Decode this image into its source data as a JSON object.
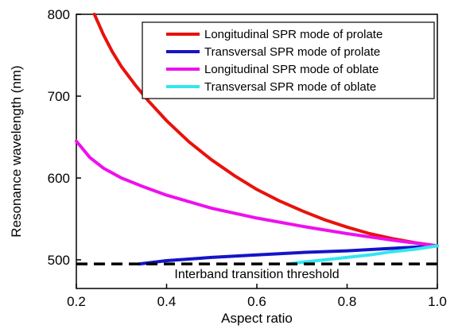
{
  "chart_data": {
    "type": "line",
    "xlabel": "Aspect ratio",
    "ylabel": "Resonance wavelength (nm)",
    "xlim": [
      0.2,
      1.0
    ],
    "ylim": [
      465,
      800
    ],
    "x_ticks": [
      "0.2",
      "0.4",
      "0.6",
      "0.8",
      "1.0"
    ],
    "y_ticks": [
      "500",
      "600",
      "700",
      "800"
    ],
    "grid": false,
    "legend_position": "top-right",
    "series": [
      {
        "name": "Longitudinal SPR mode of prolate",
        "color": "#e8120c",
        "points": [
          [
            0.24,
            800
          ],
          [
            0.26,
            775
          ],
          [
            0.28,
            754
          ],
          [
            0.3,
            736
          ],
          [
            0.33,
            714
          ],
          [
            0.36,
            694
          ],
          [
            0.4,
            670
          ],
          [
            0.45,
            644
          ],
          [
            0.5,
            622
          ],
          [
            0.55,
            603
          ],
          [
            0.6,
            586
          ],
          [
            0.65,
            572
          ],
          [
            0.7,
            560
          ],
          [
            0.75,
            549
          ],
          [
            0.8,
            540
          ],
          [
            0.85,
            532
          ],
          [
            0.9,
            526
          ],
          [
            0.95,
            521
          ],
          [
            1.0,
            517
          ]
        ]
      },
      {
        "name": "Transversal SPR mode of prolate",
        "color": "#1414c8",
        "points": [
          [
            0.34,
            495
          ],
          [
            0.4,
            499
          ],
          [
            0.5,
            503
          ],
          [
            0.6,
            506
          ],
          [
            0.7,
            509
          ],
          [
            0.8,
            511
          ],
          [
            0.9,
            514
          ],
          [
            1.0,
            517
          ]
        ]
      },
      {
        "name": "Longitudinal SPR mode of oblate",
        "color": "#ee10ee",
        "points": [
          [
            0.2,
            645
          ],
          [
            0.23,
            625
          ],
          [
            0.26,
            612
          ],
          [
            0.3,
            600
          ],
          [
            0.35,
            589
          ],
          [
            0.4,
            579
          ],
          [
            0.5,
            563
          ],
          [
            0.6,
            551
          ],
          [
            0.7,
            541
          ],
          [
            0.8,
            532
          ],
          [
            0.9,
            524
          ],
          [
            1.0,
            517
          ]
        ]
      },
      {
        "name": "Transversal SPR mode of oblate",
        "color": "#33e6f0",
        "points": [
          [
            0.67,
            495
          ],
          [
            0.7,
            497
          ],
          [
            0.75,
            500
          ],
          [
            0.8,
            503
          ],
          [
            0.85,
            506
          ],
          [
            0.9,
            510
          ],
          [
            0.95,
            513
          ],
          [
            1.0,
            517
          ]
        ]
      }
    ],
    "threshold": {
      "label": "Interband transition threshold",
      "y": 495,
      "color": "#000000"
    }
  }
}
